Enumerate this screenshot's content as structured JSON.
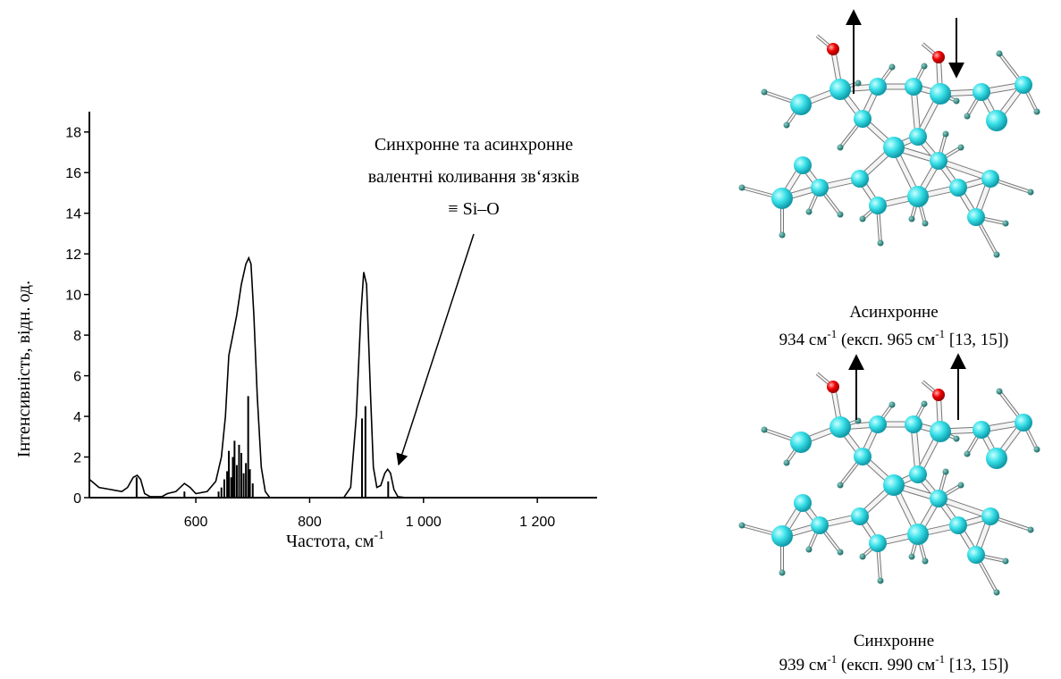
{
  "chart_data": {
    "type": "line",
    "y_label": "Інтенсивність, відн. од.",
    "x_label": [
      "Частота, см",
      "-1"
    ],
    "annotation": [
      "Синхронне та асинхронне",
      "валентні коливання зв‘язків",
      "≡ Si–O"
    ],
    "xlim": [
      413,
      1305
    ],
    "ylim": [
      0,
      19
    ],
    "xticks": [
      600,
      800,
      {
        "value": 1000,
        "label": "1 000"
      },
      {
        "value": 1200,
        "label": "1 200"
      }
    ],
    "yticks": [
      0,
      2,
      4,
      6,
      8,
      10,
      12,
      14,
      16,
      18
    ],
    "series": [
      {
        "type": "line",
        "color": "#000000",
        "x": [
          413,
          430,
          450,
          470,
          480,
          490,
          497,
          503,
          510,
          520,
          540,
          550,
          565,
          580,
          590,
          600,
          620,
          635,
          645,
          652,
          658,
          665,
          672,
          680,
          688,
          693,
          697,
          702,
          708,
          715,
          722,
          730,
          860,
          872,
          882,
          890,
          895,
          900,
          907,
          912,
          918,
          925,
          932,
          937,
          942,
          948,
          955,
          970,
          1305
        ],
        "values": [
          0.9,
          0.5,
          0.4,
          0.3,
          0.5,
          1.0,
          1.1,
          0.9,
          0.2,
          0.05,
          0.05,
          0.2,
          0.3,
          0.7,
          0.5,
          0.2,
          0.3,
          0.8,
          2,
          4,
          7,
          8,
          9,
          10.5,
          11.5,
          11.8,
          11.5,
          9,
          5,
          1.5,
          0.3,
          0,
          0,
          0.5,
          4,
          9,
          11.1,
          10.5,
          5,
          1.5,
          0.5,
          0.6,
          1.2,
          1.4,
          1.2,
          0.4,
          0.05,
          0,
          0
        ]
      },
      {
        "type": "bar",
        "color": "#000000",
        "x": [
          496,
          580,
          640,
          645,
          650,
          655,
          658,
          662,
          665,
          668,
          672,
          676,
          680,
          684,
          688,
          692,
          695,
          700,
          892,
          898,
          938
        ],
        "values": [
          1.0,
          0.3,
          0.3,
          0.5,
          0.9,
          1.3,
          2.3,
          1.0,
          2.0,
          2.8,
          1.6,
          2.6,
          2.2,
          1.2,
          1.7,
          5.0,
          1.4,
          0.7,
          3.9,
          4.5,
          0.8
        ]
      }
    ]
  },
  "diagrams": [
    {
      "title": "Асинхронне",
      "caption": [
        "934 см",
        "-1",
        "  (експ. 965 см",
        "-1",
        " [13, 15])"
      ]
    },
    {
      "title": "Синхронне",
      "caption": [
        "939 см",
        "-1",
        "  (експ. 990 см",
        "-1",
        " [13, 15])"
      ]
    }
  ]
}
